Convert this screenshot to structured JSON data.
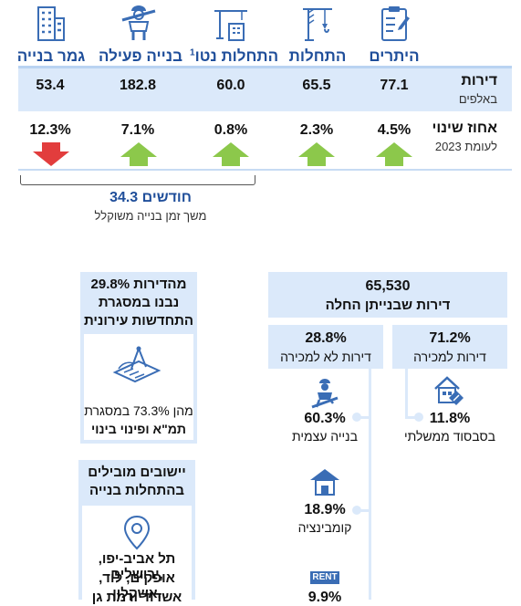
{
  "columns": [
    {
      "key": "permits",
      "label": "היתרים",
      "icon": "clipboard-icon"
    },
    {
      "key": "starts",
      "label": "התחלות",
      "icon": "crane-hook-icon"
    },
    {
      "key": "net_starts",
      "label": "התחלות נטו",
      "sup": "1",
      "icon": "crane-building-icon"
    },
    {
      "key": "active",
      "label": "בנייה פעילה",
      "icon": "construction-worker-icon"
    },
    {
      "key": "completed",
      "label": "גמר בנייה",
      "icon": "building-icon"
    }
  ],
  "apartments": {
    "title": "דירות",
    "subtitle": "באלפים",
    "values": [
      "77.1",
      "65.5",
      "60.0",
      "182.8",
      "53.4"
    ]
  },
  "change": {
    "title": "אחוז שינוי",
    "subtitle": "לעומת 2023",
    "values": [
      "4.5%",
      "2.3%",
      "0.8%",
      "7.1%",
      "12.3%"
    ],
    "directions": [
      "up",
      "up",
      "up",
      "up",
      "down"
    ],
    "up_color": "#8cc84b",
    "down_color": "#e23d3d"
  },
  "duration": {
    "value": "34.3 חודשים",
    "label": "משך זמן בנייה משוקלל"
  },
  "urban": {
    "line1": "29.8% מהדירות",
    "line2": "נבנו במסגרת",
    "line3": "התחדשות עירונית",
    "sub1": "מהן 73.3% במסגרת",
    "sub2": "תמ\"א ופינוי בינוי",
    "icon": "blueprint-icon"
  },
  "leading": {
    "line1": "יישובים מובילים",
    "line2": "בהתחלות בנייה",
    "icon": "location-pin-icon",
    "cities1": "תל אביב-יפו, ירושלים,",
    "cities2": "אופקים, לוד, אשקלון,",
    "cities3": "אשדוד ורמת גן"
  },
  "started": {
    "value": "65,530",
    "label": "דירות שבנייתן החלה",
    "for_sale_pct": "71.2%",
    "for_sale_label": "דירות למכירה",
    "not_for_sale_pct": "28.8%",
    "not_for_sale_label": "דירות לא למכירה",
    "subsidy_pct": "11.8%",
    "subsidy_label": "בסבסוד ממשלתי",
    "self_pct": "60.3%",
    "self_label": "בנייה עצמית",
    "combo_pct": "18.9%",
    "combo_label": "קומבינציה",
    "rent_pct": "9.9%",
    "rent_icon_text": "RENT"
  }
}
